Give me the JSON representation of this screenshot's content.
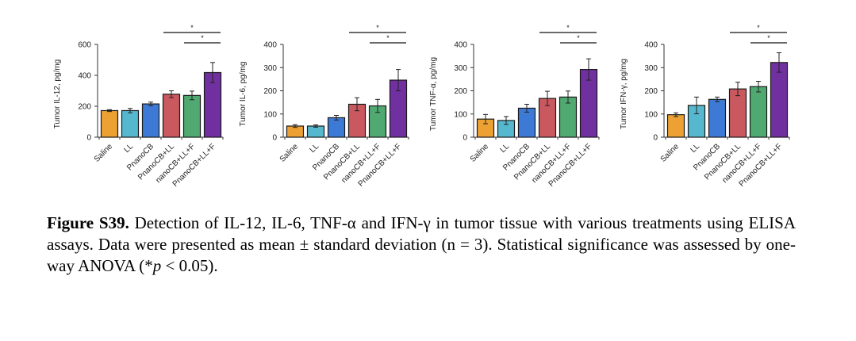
{
  "chart_data": [
    {
      "type": "bar",
      "title": "",
      "ylabel": "Tumor IL-12, pg/mg",
      "xlabel": "",
      "ylim": [
        0,
        600
      ],
      "yticks": [
        0,
        200,
        400,
        600
      ],
      "categories": [
        "Saline",
        "LL",
        "PnanoCB",
        "PnanoCB+LL",
        "nanoCB+LL+F",
        "PnanoCB+LL+F"
      ],
      "values": [
        172,
        172,
        215,
        278,
        270,
        418
      ],
      "errors": [
        6,
        14,
        12,
        22,
        28,
        65
      ],
      "significance": [
        {
          "from": "PnanoCB+LL",
          "to": "PnanoCB+LL+F",
          "label": "*"
        },
        {
          "from": "nanoCB+LL+F",
          "to": "PnanoCB+LL+F",
          "label": "*"
        }
      ]
    },
    {
      "type": "bar",
      "title": "",
      "ylabel": "Tumor IL-6, pg/mg",
      "xlabel": "",
      "ylim": [
        0,
        400
      ],
      "yticks": [
        0,
        100,
        200,
        300,
        400
      ],
      "categories": [
        "Saline",
        "LL",
        "PnanoCB",
        "PnanoCB+LL",
        "nanoCB+LL+F",
        "PnanoCB+LL+F"
      ],
      "values": [
        48,
        48,
        84,
        142,
        135,
        246
      ],
      "errors": [
        6,
        5,
        10,
        28,
        28,
        46
      ],
      "significance": [
        {
          "from": "PnanoCB+LL",
          "to": "PnanoCB+LL+F",
          "label": "*"
        },
        {
          "from": "nanoCB+LL+F",
          "to": "PnanoCB+LL+F",
          "label": "*"
        }
      ]
    },
    {
      "type": "bar",
      "title": "",
      "ylabel": "Tumor TNF-α, pg/mg",
      "xlabel": "",
      "ylim": [
        0,
        400
      ],
      "yticks": [
        0,
        100,
        200,
        300,
        400
      ],
      "categories": [
        "Saline",
        "LL",
        "PnanoCB",
        "PnanoCB+LL",
        "nanoCB+LL+F",
        "PnanoCB+LL+F"
      ],
      "values": [
        78,
        72,
        125,
        167,
        173,
        292
      ],
      "errors": [
        20,
        17,
        17,
        31,
        26,
        46
      ],
      "significance": [
        {
          "from": "PnanoCB+LL",
          "to": "PnanoCB+LL+F",
          "label": "*"
        },
        {
          "from": "nanoCB+LL+F",
          "to": "PnanoCB+LL+F",
          "label": "*"
        }
      ]
    },
    {
      "type": "bar",
      "title": "",
      "ylabel": "Tumor IFN-γ, pg/mg",
      "xlabel": "",
      "ylim": [
        0,
        400
      ],
      "yticks": [
        0,
        100,
        200,
        300,
        400
      ],
      "categories": [
        "Saline",
        "LL",
        "PnanoCB",
        "PnanoCB+LL",
        "nanoCB+LL+F",
        "PnanoCB+LL+F"
      ],
      "values": [
        97,
        137,
        163,
        208,
        218,
        322
      ],
      "errors": [
        8,
        36,
        10,
        29,
        23,
        42
      ],
      "significance": [
        {
          "from": "PnanoCB+LL",
          "to": "PnanoCB+LL+F",
          "label": "*"
        },
        {
          "from": "nanoCB+LL+F",
          "to": "PnanoCB+LL+F",
          "label": "*"
        }
      ]
    }
  ],
  "bar_colors": [
    "#ECA132",
    "#56B8CF",
    "#3D7AD6",
    "#C9585F",
    "#4FA971",
    "#7030A0"
  ],
  "caption": {
    "label": "Figure S39.",
    "text_before_p": " Detection of IL-12, IL-6, TNF-α and IFN-γ in tumor tissue with various treatments using ELISA assays. Data were presented as mean ± standard deviation (n = 3). Statistical significance was assessed by one-way ANOVA (*",
    "p_symbol": "p",
    "text_after_p": " < 0.05)."
  }
}
